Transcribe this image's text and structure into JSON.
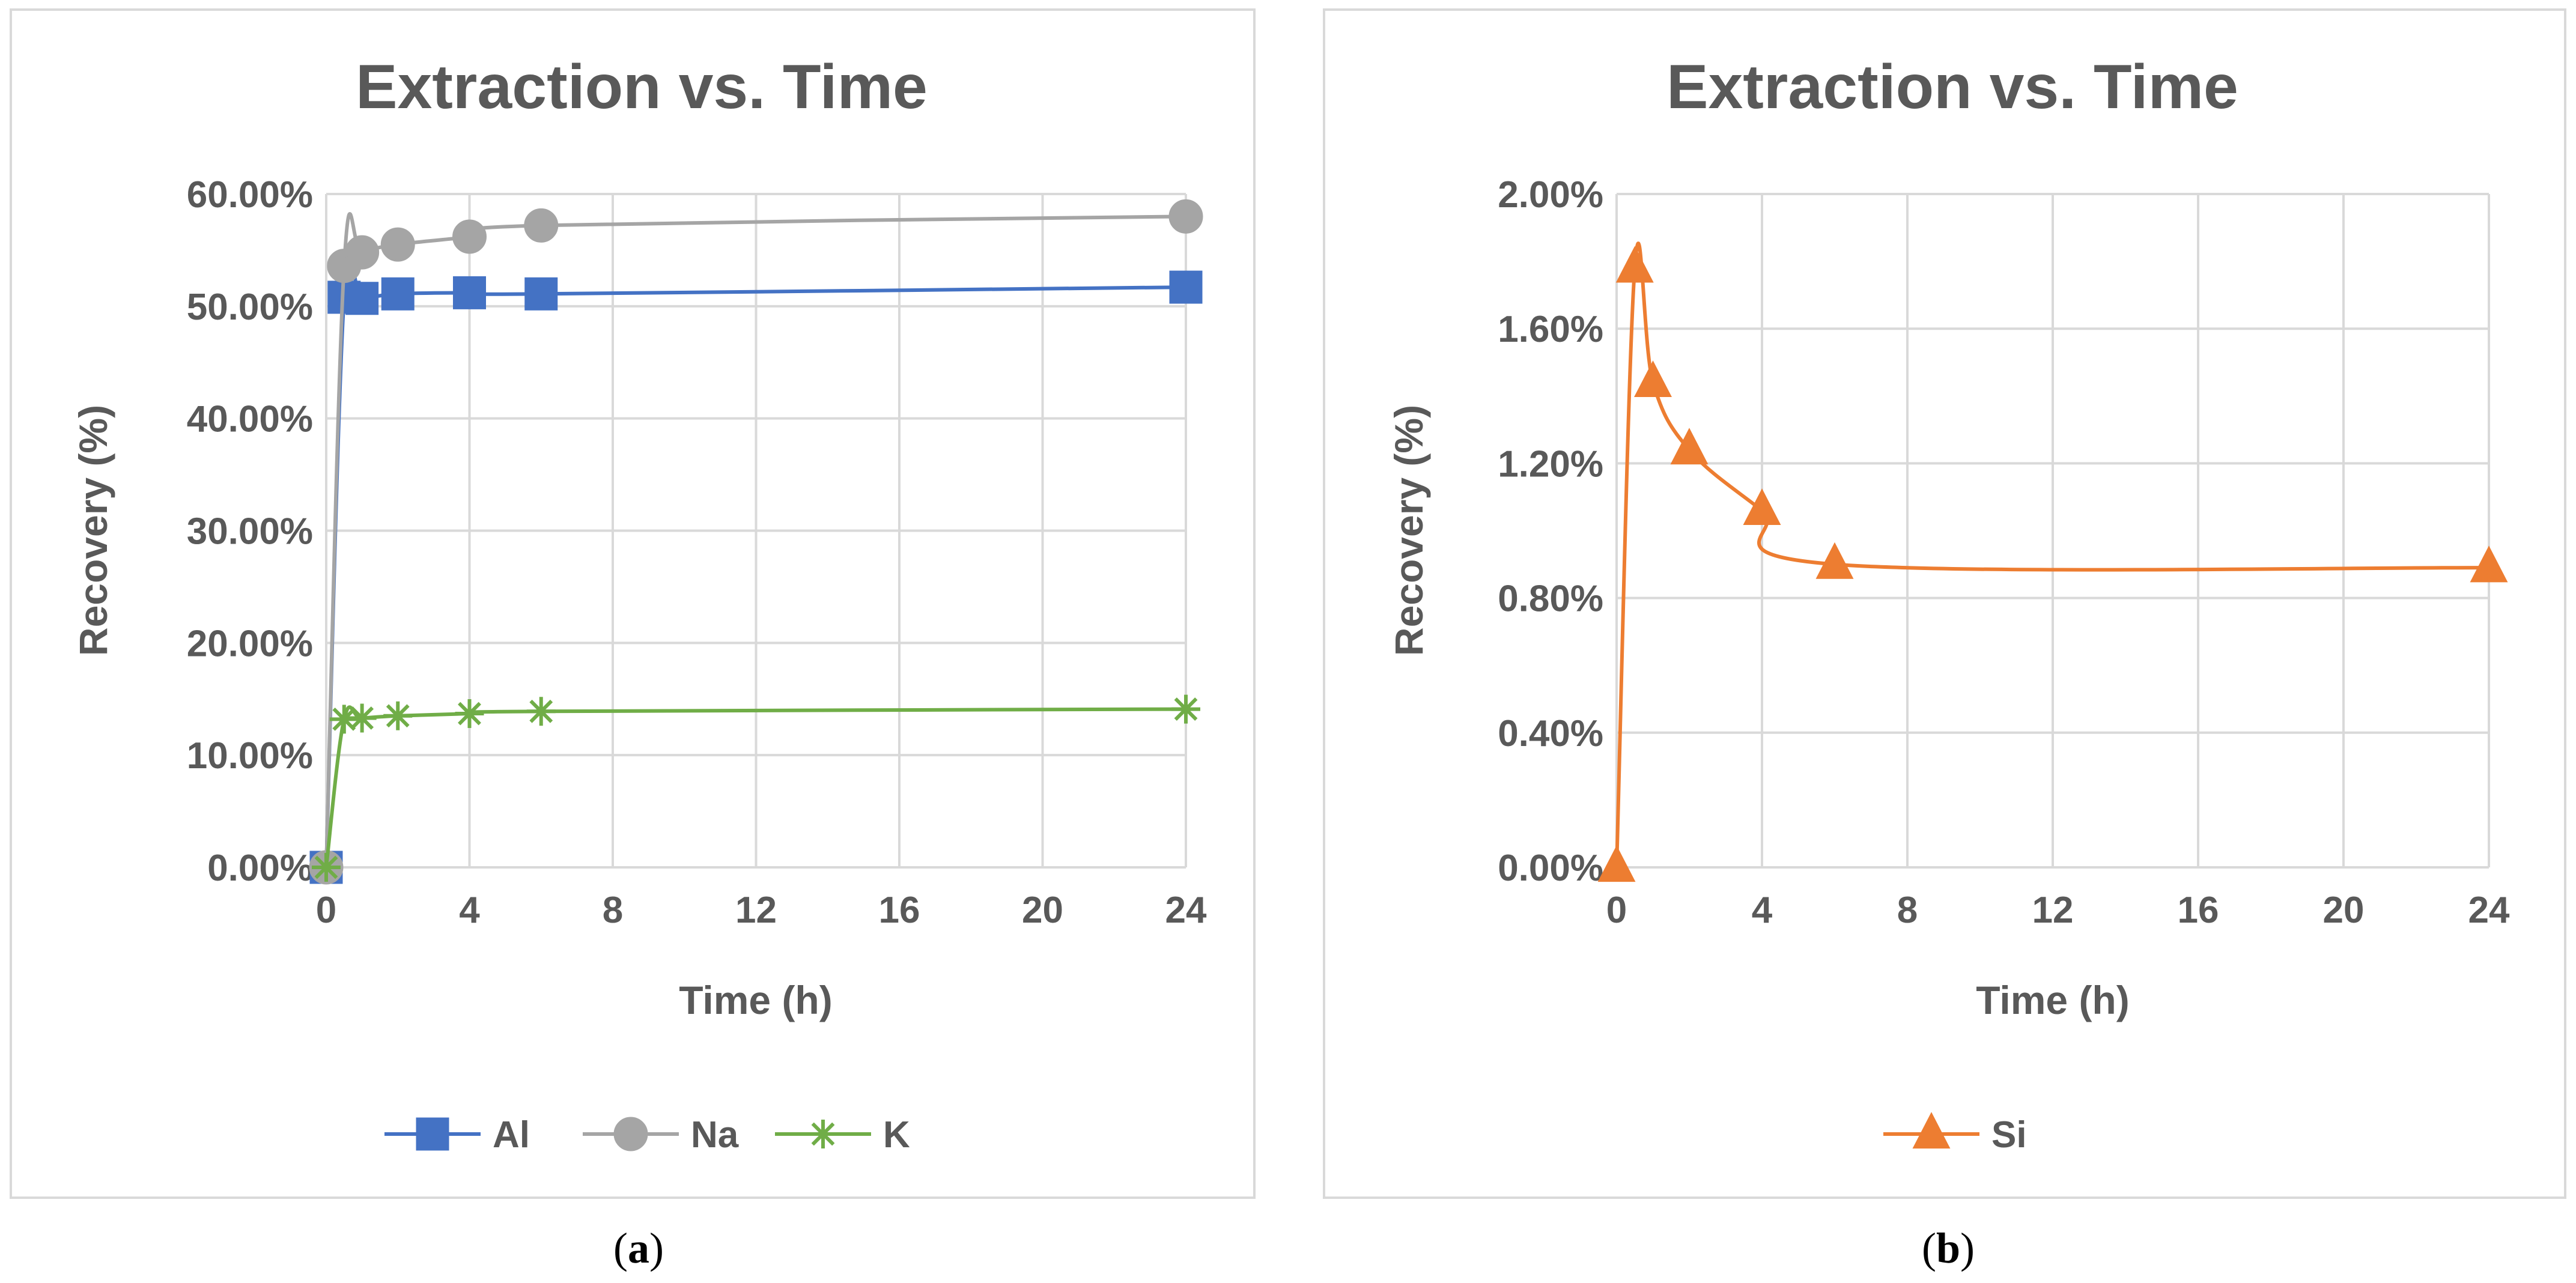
{
  "chart_data": [
    {
      "type": "line",
      "panel_label": "a",
      "title": "Extraction vs. Time",
      "xlabel": "Time (h)",
      "ylabel": "Recovery (%)",
      "xlim": [
        0,
        24
      ],
      "ylim": [
        0,
        0.6
      ],
      "xticks": [
        0,
        4,
        8,
        12,
        16,
        20,
        24
      ],
      "xtick_labels": [
        "0",
        "4",
        "8",
        "12",
        "16",
        "20",
        "24"
      ],
      "yticks": [
        0,
        0.1,
        0.2,
        0.3,
        0.4,
        0.5,
        0.6
      ],
      "ytick_labels": [
        "0.00%",
        "10.00%",
        "20.00%",
        "30.00%",
        "40.00%",
        "50.00%",
        "60.00%"
      ],
      "grid": true,
      "legend_position": "bottom",
      "series": [
        {
          "name": "Al",
          "color": "#4472C4",
          "marker": "square",
          "x": [
            0,
            0.5,
            1,
            2,
            4,
            6,
            24
          ],
          "y": [
            0,
            0.508,
            0.507,
            0.511,
            0.512,
            0.511,
            0.517
          ]
        },
        {
          "name": "Na",
          "color": "#A5A5A5",
          "marker": "circle",
          "x": [
            0,
            0.5,
            1,
            2,
            4,
            6,
            24
          ],
          "y": [
            0,
            0.536,
            0.548,
            0.555,
            0.562,
            0.572,
            0.58
          ]
        },
        {
          "name": "K",
          "color": "#70AD47",
          "marker": "star",
          "x": [
            0,
            0.5,
            1,
            2,
            4,
            6,
            24
          ],
          "y": [
            0,
            0.132,
            0.133,
            0.135,
            0.137,
            0.139,
            0.141
          ]
        }
      ]
    },
    {
      "type": "line",
      "panel_label": "b",
      "title": "Extraction vs. Time",
      "xlabel": "Time (h)",
      "ylabel": "Recovery (%)",
      "xlim": [
        0,
        24
      ],
      "ylim": [
        0,
        0.02
      ],
      "xticks": [
        0,
        4,
        8,
        12,
        16,
        20,
        24
      ],
      "xtick_labels": [
        "0",
        "4",
        "8",
        "12",
        "16",
        "20",
        "24"
      ],
      "yticks": [
        0,
        0.004,
        0.008,
        0.012,
        0.016,
        0.02
      ],
      "ytick_labels": [
        "0.00%",
        "0.40%",
        "0.80%",
        "1.20%",
        "1.60%",
        "2.00%"
      ],
      "grid": true,
      "legend_position": "bottom",
      "series": [
        {
          "name": "Si",
          "color": "#ED7D31",
          "marker": "triangle",
          "x": [
            0,
            0.5,
            1,
            2,
            4,
            6,
            24
          ],
          "y": [
            0,
            0.0178,
            0.0144,
            0.0124,
            0.0106,
            0.009,
            0.0089
          ]
        }
      ]
    }
  ]
}
